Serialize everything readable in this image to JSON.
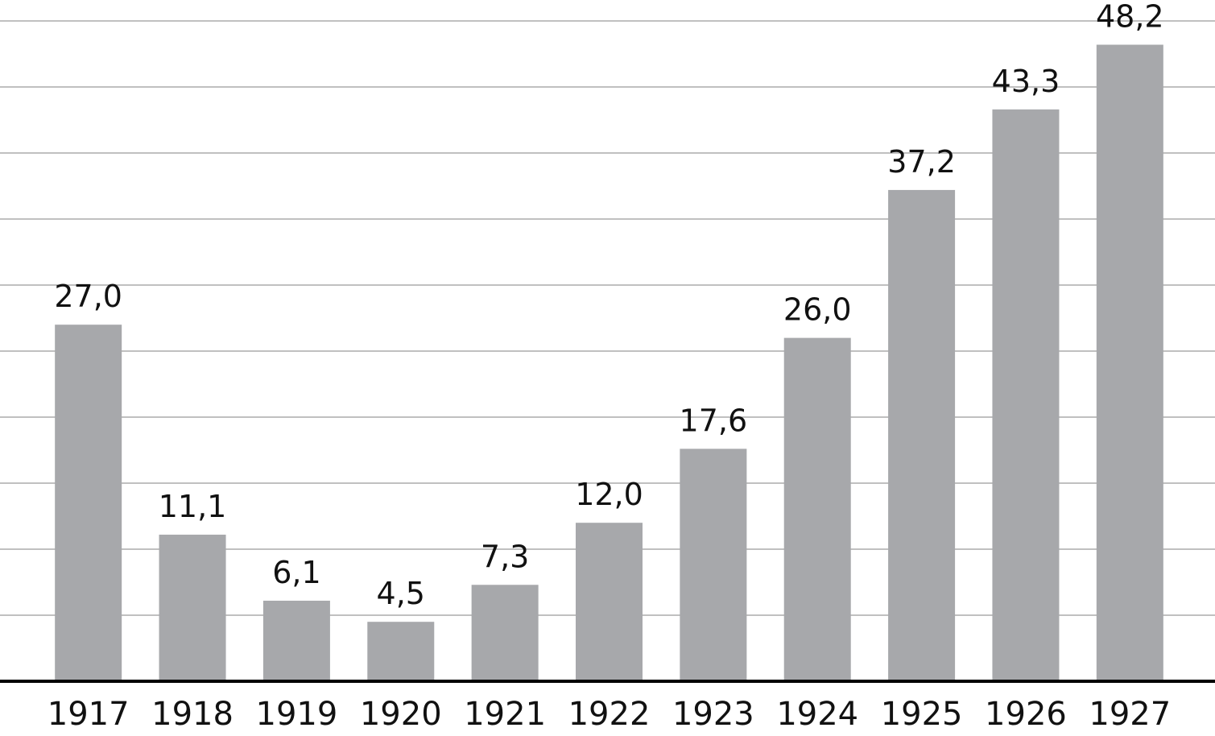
{
  "chart_data": {
    "type": "bar",
    "title": "",
    "xlabel": "",
    "ylabel": "",
    "categories": [
      "1917",
      "1918",
      "1919",
      "1920",
      "1921",
      "1922",
      "1923",
      "1924",
      "1925",
      "1926",
      "1927"
    ],
    "values": [
      27.0,
      11.1,
      6.1,
      4.5,
      7.3,
      12.0,
      17.6,
      26.0,
      37.2,
      43.3,
      48.2
    ],
    "data_labels": [
      "27,0",
      "11,1",
      "6,1",
      "4,5",
      "7,3",
      "12,0",
      "17,6",
      "26,0",
      "37,2",
      "43,3",
      "48,2"
    ],
    "ylim": [
      0,
      50
    ],
    "grid": true,
    "grid_step": 5,
    "y_tick_labels_shown": false,
    "legend": "none",
    "colors": {
      "bar": "#a7a8ab",
      "grid": "#9a9a9a",
      "axis": "#000000"
    }
  }
}
